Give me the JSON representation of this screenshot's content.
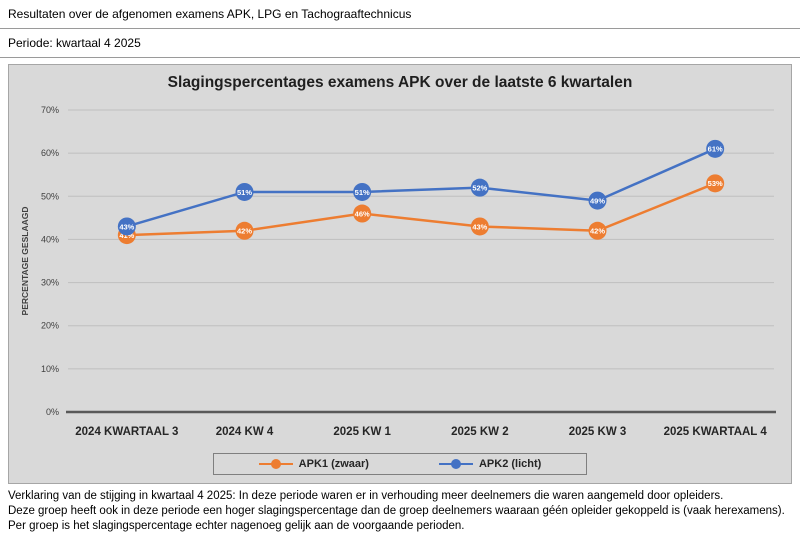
{
  "header": {
    "title": "Resultaten over de afgenomen examens APK, LPG en Tachograaftechnicus",
    "period": "Periode: kwartaal 4 2025"
  },
  "chart_data": {
    "type": "line",
    "title": "Slagingspercentages examens APK over de laatste 6 kwartalen",
    "ylabel": "PERCENTAGE GESLAAGD",
    "xlabel": "",
    "categories": [
      "2024 KWARTAAL 3",
      "2024 KW 4",
      "2025 KW 1",
      "2025 KW 2",
      "2025 KW 3",
      "2025 KWARTAAL 4"
    ],
    "series": [
      {
        "name": "APK1 (zwaar)",
        "color": "#ED7D31",
        "values": [
          41,
          42,
          46,
          43,
          42,
          53
        ]
      },
      {
        "name": "APK2 (licht)",
        "color": "#4472C4",
        "values": [
          43,
          51,
          51,
          52,
          49,
          61
        ]
      }
    ],
    "ylim": [
      0,
      70
    ],
    "ytick_step": 10,
    "ytick_suffix": "%",
    "grid": true,
    "legend_position": "bottom",
    "data_label_format": "{v}%"
  },
  "footnote": {
    "lines": [
      "Verklaring van de stijging in kwartaal 4 2025: In deze periode waren er in verhouding meer deelnemers die waren aangemeld door opleiders.",
      "Deze groep heeft ook in deze periode een hoger slagingspercentage dan de groep deelnemers waaraan géén opleider gekoppeld is (vaak herexamens).",
      "Per groep is het slagingspercentage echter nagenoeg gelijk aan de voorgaande perioden."
    ]
  },
  "colors": {
    "panel_bg": "#D9D9D9",
    "grid": "#BFBFBF",
    "axis": "#595959",
    "text": "#404040"
  }
}
